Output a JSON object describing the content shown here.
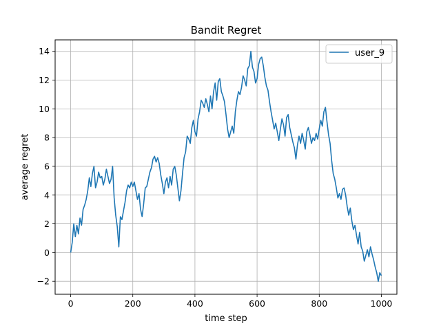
{
  "chart_data": {
    "type": "line",
    "title": "Bandit Regret",
    "xlabel": "time step",
    "ylabel": "average regret",
    "xlim": [
      -50,
      1050
    ],
    "ylim": [
      -2.9,
      14.8
    ],
    "xticks": [
      0,
      200,
      400,
      600,
      800,
      1000
    ],
    "yticks": [
      -2,
      0,
      2,
      4,
      6,
      8,
      10,
      12,
      14
    ],
    "xtick_labels": [
      "0",
      "200",
      "400",
      "600",
      "800",
      "1000"
    ],
    "ytick_labels": [
      "−2",
      "0",
      "2",
      "4",
      "6",
      "8",
      "10",
      "12",
      "14"
    ],
    "grid": true,
    "legend_position": "top-right",
    "colors": {
      "series": "#1f77b4",
      "grid": "#b0b0b0",
      "axes": "#000000"
    },
    "series": [
      {
        "name": "user_9",
        "x": [
          0,
          5,
          10,
          15,
          20,
          25,
          30,
          35,
          40,
          45,
          50,
          55,
          60,
          65,
          70,
          75,
          80,
          85,
          90,
          95,
          100,
          105,
          110,
          115,
          120,
          125,
          130,
          135,
          140,
          145,
          150,
          155,
          160,
          165,
          170,
          175,
          180,
          185,
          190,
          195,
          200,
          205,
          210,
          215,
          220,
          225,
          230,
          235,
          240,
          245,
          250,
          255,
          260,
          265,
          270,
          275,
          280,
          285,
          290,
          295,
          300,
          305,
          310,
          315,
          320,
          325,
          330,
          335,
          340,
          345,
          350,
          355,
          360,
          365,
          370,
          375,
          380,
          385,
          390,
          395,
          400,
          405,
          410,
          415,
          420,
          425,
          430,
          435,
          440,
          445,
          450,
          455,
          460,
          465,
          470,
          475,
          480,
          485,
          490,
          495,
          500,
          505,
          510,
          515,
          520,
          525,
          530,
          535,
          540,
          545,
          550,
          555,
          560,
          565,
          570,
          575,
          580,
          585,
          590,
          595,
          600,
          605,
          610,
          615,
          620,
          625,
          630,
          635,
          640,
          645,
          650,
          655,
          660,
          665,
          670,
          675,
          680,
          685,
          690,
          695,
          700,
          705,
          710,
          715,
          720,
          725,
          730,
          735,
          740,
          745,
          750,
          755,
          760,
          765,
          770,
          775,
          780,
          785,
          790,
          795,
          800,
          805,
          810,
          815,
          820,
          825,
          830,
          835,
          840,
          845,
          850,
          855,
          860,
          865,
          870,
          875,
          880,
          885,
          890,
          895,
          900,
          905,
          910,
          915,
          920,
          925,
          930,
          935,
          940,
          945,
          950,
          955,
          960,
          965,
          970,
          975,
          980,
          985,
          990,
          995,
          1000
        ],
        "y": [
          0.0,
          0.7,
          2.0,
          1.1,
          1.9,
          1.3,
          2.4,
          1.9,
          3.0,
          3.3,
          3.7,
          4.3,
          5.2,
          4.6,
          5.5,
          6.0,
          4.5,
          4.9,
          5.6,
          5.2,
          5.3,
          4.7,
          5.1,
          5.8,
          5.3,
          4.8,
          5.1,
          6.0,
          3.8,
          2.6,
          1.8,
          0.4,
          2.5,
          2.3,
          2.9,
          3.5,
          4.3,
          4.7,
          4.5,
          4.9,
          4.6,
          4.9,
          4.3,
          3.7,
          4.1,
          3.0,
          2.5,
          3.4,
          4.5,
          4.6,
          5.1,
          5.6,
          5.9,
          6.5,
          6.7,
          6.3,
          6.6,
          6.2,
          5.4,
          4.8,
          4.1,
          4.9,
          5.2,
          4.5,
          5.3,
          4.7,
          5.8,
          6.0,
          5.4,
          4.5,
          3.6,
          4.3,
          5.5,
          6.6,
          7.0,
          8.1,
          7.9,
          7.6,
          8.7,
          9.2,
          8.4,
          8.1,
          9.3,
          9.8,
          10.6,
          10.4,
          10.1,
          10.7,
          10.3,
          9.8,
          10.9,
          10.0,
          11.2,
          11.8,
          10.6,
          11.9,
          12.1,
          11.2,
          10.9,
          10.5,
          9.6,
          8.6,
          8.0,
          8.4,
          8.8,
          8.3,
          9.8,
          10.6,
          11.2,
          11.0,
          11.5,
          12.3,
          12.0,
          11.6,
          12.8,
          13.0,
          14.0,
          12.9,
          12.6,
          11.8,
          12.1,
          13.1,
          13.5,
          13.6,
          13.0,
          12.2,
          11.6,
          11.3,
          10.5,
          9.8,
          9.2,
          8.6,
          9.0,
          8.4,
          7.8,
          8.6,
          9.3,
          8.9,
          8.1,
          9.4,
          9.6,
          8.7,
          8.2,
          7.7,
          7.3,
          6.5,
          7.5,
          8.1,
          7.6,
          8.3,
          7.8,
          7.2,
          8.4,
          8.7,
          8.2,
          7.6,
          8.0,
          7.8,
          8.3,
          7.9,
          8.6,
          9.2,
          8.8,
          9.8,
          10.1,
          9.1,
          8.2,
          7.6,
          6.4,
          5.5,
          5.1,
          4.5,
          3.8,
          4.1,
          3.7,
          4.4,
          4.5,
          4.0,
          3.2,
          2.6,
          3.1,
          2.2,
          1.6,
          1.9,
          1.2,
          0.6,
          1.4,
          0.4,
          0.1,
          -0.6,
          -0.2,
          0.2,
          -0.3,
          0.4,
          -0.1,
          -0.5,
          -1.0,
          -1.4,
          -2.0,
          -1.4,
          -1.6
        ]
      }
    ]
  }
}
